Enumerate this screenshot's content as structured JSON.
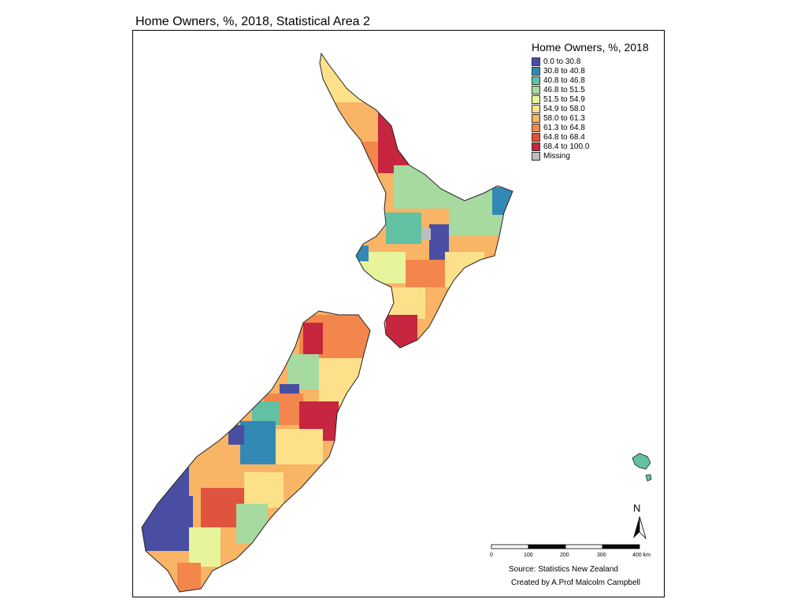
{
  "title": "Home Owners, %, 2018, Statistical Area 2",
  "legend": {
    "title": "Home Owners, %, 2018",
    "items": [
      {
        "label": "0.0 to 30.8",
        "color": "#4a4ea2"
      },
      {
        "label": "30.8 to 40.8",
        "color": "#3389b5"
      },
      {
        "label": "40.8 to 46.8",
        "color": "#62c0a3"
      },
      {
        "label": "46.8 to 51.5",
        "color": "#a7da9e"
      },
      {
        "label": "51.5 to 54.9",
        "color": "#e7f49b"
      },
      {
        "label": "54.9 to 58.0",
        "color": "#fde18a"
      },
      {
        "label": "58.0 to 61.3",
        "color": "#f9b465"
      },
      {
        "label": "61.3 to 64.8",
        "color": "#f3864c"
      },
      {
        "label": "64.8 to 68.4",
        "color": "#e0533e"
      },
      {
        "label": "68.4 to 100.0",
        "color": "#c6263f"
      },
      {
        "label": "Missing",
        "color": "#bdbdbd"
      }
    ]
  },
  "north_arrow": {
    "label": "N"
  },
  "scale_bar": {
    "ticks": [
      "0",
      "100",
      "200",
      "300",
      "400 km"
    ]
  },
  "source": "Source: Statistics New Zealand",
  "credit": "Created by A.Prof Malcolm Campbell"
}
